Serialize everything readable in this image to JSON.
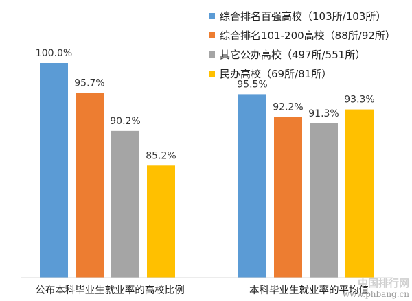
{
  "chart_data": {
    "type": "bar",
    "groups": [
      "公布本科毕业生就业率的高校比例",
      "本科毕业生就业率的平均值"
    ],
    "series": [
      {
        "name": "综合排名百强高校（103所/103所）",
        "color": "#5B9BD5",
        "values": [
          100.0,
          95.5
        ],
        "labels": [
          "100.0%",
          "95.5%"
        ]
      },
      {
        "name": "综合排名101-200高校（88所/92所）",
        "color": "#ED7D31",
        "values": [
          95.7,
          92.2
        ],
        "labels": [
          "95.7%",
          "92.2%"
        ]
      },
      {
        "name": "其它公办高校（497所/551所）",
        "color": "#A5A5A5",
        "values": [
          90.2,
          91.3
        ],
        "labels": [
          "90.2%",
          "91.3%"
        ]
      },
      {
        "name": "民办高校（69所/81所）",
        "color": "#FFC000",
        "values": [
          85.2,
          93.3
        ],
        "labels": [
          "85.2%",
          "93.3%"
        ]
      }
    ],
    "grid": false,
    "legend": "top-right"
  },
  "watermark": {
    "site_name": "中国排行网",
    "url": "www.phbang.cn"
  }
}
